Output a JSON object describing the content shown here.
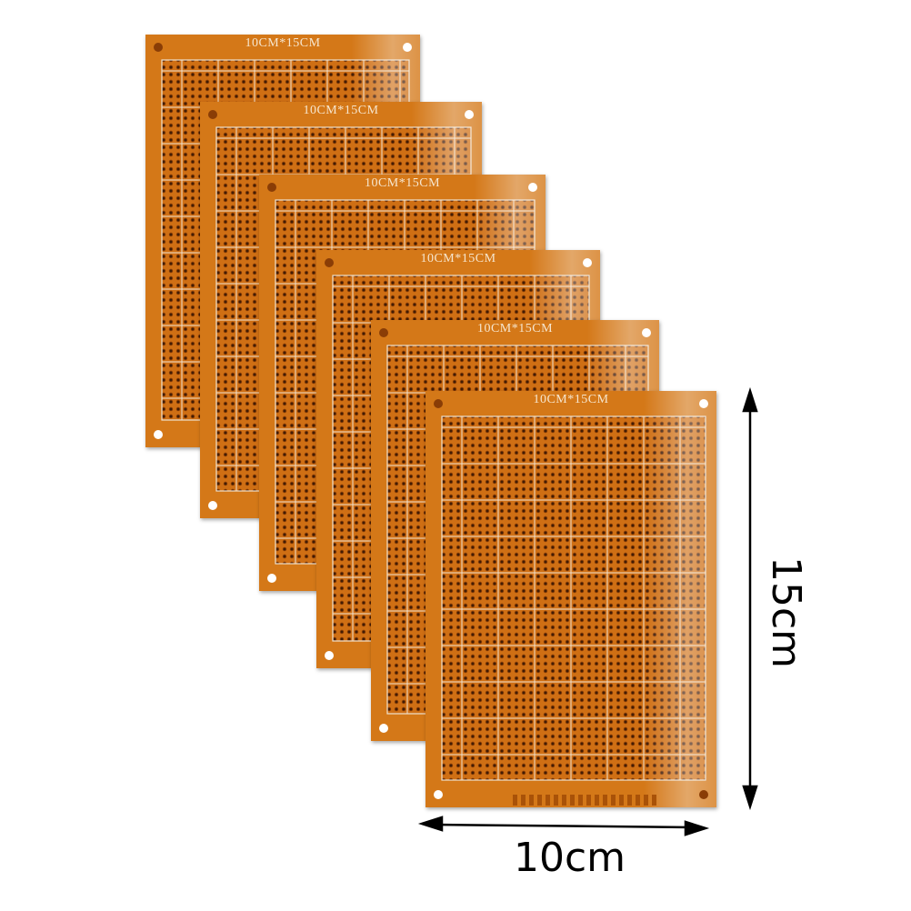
{
  "boards": [
    {
      "label": "10CM*15CM"
    },
    {
      "label": "10CM*15CM"
    },
    {
      "label": "10CM*15CM"
    },
    {
      "label": "10CM*15CM"
    },
    {
      "label": "10CM*15CM"
    },
    {
      "label": "10CM*15CM"
    }
  ],
  "dimensions": {
    "height_label": "15cm",
    "width_label": "10cm"
  },
  "colors": {
    "board": "#d47818",
    "board_dark": "#b85a0c",
    "silkscreen": "#f3e4d0",
    "background": "#ffffff"
  }
}
